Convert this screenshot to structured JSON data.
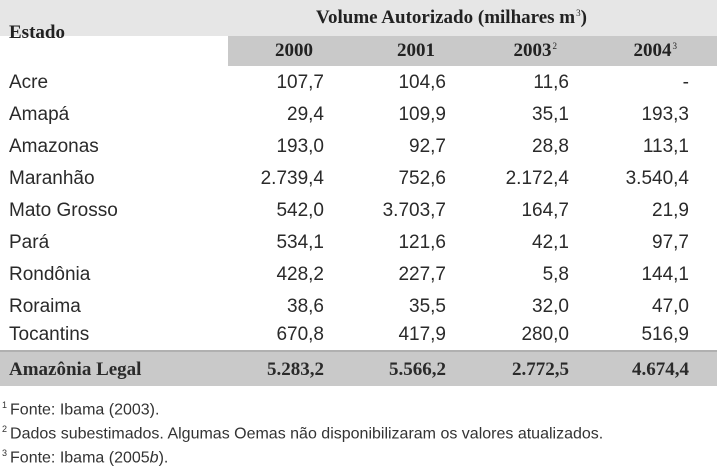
{
  "header": {
    "estado": "Estado",
    "volume_title": "Volume Autorizado (milhares m",
    "volume_sup": "3",
    "volume_close": ")",
    "years": [
      {
        "label": "2000",
        "sup": ""
      },
      {
        "label": "2001",
        "sup": ""
      },
      {
        "label": "2003",
        "sup": "2"
      },
      {
        "label": "2004",
        "sup": "3"
      }
    ]
  },
  "rows": [
    {
      "estado": "Acre",
      "values": [
        "107,7",
        "104,6",
        "11,6",
        "-"
      ]
    },
    {
      "estado": "Amapá",
      "values": [
        "29,4",
        "109,9",
        "35,1",
        "193,3"
      ]
    },
    {
      "estado": "Amazonas",
      "values": [
        "193,0",
        "92,7",
        "28,8",
        "113,1"
      ]
    },
    {
      "estado": "Maranhão",
      "values": [
        "2.739,4",
        "752,6",
        "2.172,4",
        "3.540,4"
      ]
    },
    {
      "estado": "Mato Grosso",
      "values": [
        "542,0",
        "3.703,7",
        "164,7",
        "21,9"
      ]
    },
    {
      "estado": "Pará",
      "values": [
        "534,1",
        "121,6",
        "42,1",
        "97,7"
      ]
    },
    {
      "estado": "Rondônia",
      "values": [
        "428,2",
        "227,7",
        "5,8",
        "144,1"
      ]
    },
    {
      "estado": "Roraima",
      "values": [
        "38,6",
        "35,5",
        "32,0",
        "47,0"
      ]
    },
    {
      "estado": "Tocantins",
      "values": [
        "670,8",
        "417,9",
        "280,0",
        "516,9"
      ]
    }
  ],
  "total": {
    "estado": "Amazônia Legal",
    "values": [
      "5.283,2",
      "5.566,2",
      "2.772,5",
      "4.674,4"
    ]
  },
  "footnotes": [
    {
      "num": "1",
      "text": "Fonte: Ibama (2003).",
      "suffix": ""
    },
    {
      "num": "2",
      "text": "Dados subestimados. Algumas Oemas não disponibilizaram os valores atualizados.",
      "suffix": ""
    },
    {
      "num": "3",
      "text": "Fonte: Ibama (2005",
      "italic": "b",
      "suffix": ")."
    }
  ]
}
